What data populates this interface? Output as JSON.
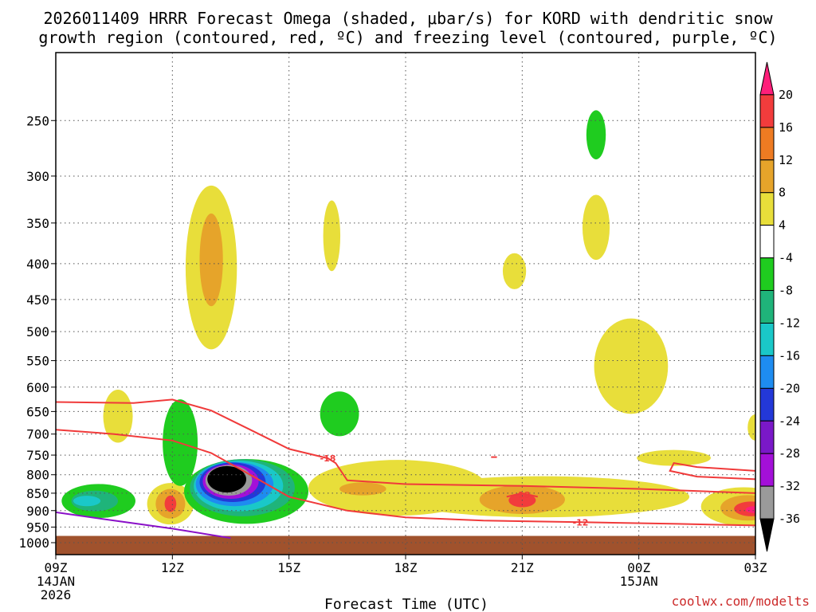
{
  "chart_data": {
    "type": "heatmap",
    "title_line1": "2026011409 HRRR Forecast Omega (shaded, μbar/s) for KORD with dendritic snow",
    "title_line2": "growth region (contoured, red, ºC) and freezing level (contoured, purple, ºC)",
    "xlabel": "Forecast Time (UTC)",
    "credit": "coolwx.com/modelts",
    "x_range_hours": [
      0,
      18
    ],
    "x_ticks": [
      {
        "hour": 0,
        "label": "09Z",
        "sub1": "14JAN",
        "sub2": "2026"
      },
      {
        "hour": 3,
        "label": "12Z",
        "sub1": "",
        "sub2": ""
      },
      {
        "hour": 6,
        "label": "15Z",
        "sub1": "",
        "sub2": ""
      },
      {
        "hour": 9,
        "label": "18Z",
        "sub1": "",
        "sub2": ""
      },
      {
        "hour": 12,
        "label": "21Z",
        "sub1": "",
        "sub2": ""
      },
      {
        "hour": 15,
        "label": "00Z",
        "sub1": "15JAN",
        "sub2": ""
      },
      {
        "hour": 18,
        "label": "03Z",
        "sub1": "",
        "sub2": ""
      }
    ],
    "y_range_hpa": [
      1040,
      200
    ],
    "y_ticks": [
      "250",
      "300",
      "350",
      "400",
      "450",
      "500",
      "550",
      "600",
      "650",
      "700",
      "750",
      "800",
      "850",
      "900",
      "950",
      "1000"
    ],
    "ground_level_hpa": 978,
    "colorbar": {
      "labels": [
        "20",
        "16",
        "12",
        "8",
        "4",
        "-4",
        "-8",
        "-12",
        "-16",
        "-20",
        "-24",
        "-28",
        "-32",
        "-36"
      ],
      "bins": [
        {
          "color": "#ff1f7a"
        },
        {
          "color": "#f23c3c"
        },
        {
          "color": "#ee7b22"
        },
        {
          "color": "#e6a42a"
        },
        {
          "color": "#e8de3a"
        },
        {
          "color": "#ffffff"
        },
        {
          "color": "#1fcc1f"
        },
        {
          "color": "#1fb47a"
        },
        {
          "color": "#1ac8c8"
        },
        {
          "color": "#1e8cf0"
        },
        {
          "color": "#2338d8"
        },
        {
          "color": "#7a18c8"
        },
        {
          "color": "#a310d8"
        },
        {
          "color": "#9a9a9a"
        },
        {
          "color": "#000000"
        }
      ]
    },
    "shaded_regions": [
      {
        "name": "yellow-12z-upper",
        "color": "#e8de3a",
        "h": 4.0,
        "p": 405,
        "dh": 0.66,
        "dp": 125
      },
      {
        "name": "orange-12z-upper",
        "color": "#e6a42a",
        "h": 4.0,
        "p": 395,
        "dp": 65,
        "dh": 0.3
      },
      {
        "name": "yellow-1030z",
        "color": "#e8de3a",
        "h": 1.6,
        "p": 660,
        "dh": 0.38,
        "dp": 60
      },
      {
        "name": "green-0930z",
        "color": "#1fcc1f",
        "h": 1.1,
        "p": 872,
        "dh": 0.95,
        "dp": 50
      },
      {
        "name": "teal-0930z",
        "color": "#1fb47a",
        "h": 1.0,
        "p": 872,
        "dh": 0.6,
        "dp": 30
      },
      {
        "name": "cyan-0930z",
        "color": "#1ac8c8",
        "h": 0.8,
        "p": 872,
        "dh": 0.35,
        "dp": 15
      },
      {
        "name": "yellow-12z-low",
        "color": "#e8de3a",
        "h": 2.95,
        "p": 880,
        "dh": 0.6,
        "dp": 62
      },
      {
        "name": "orange-12z-low",
        "color": "#e6a42a",
        "h": 2.95,
        "p": 880,
        "dh": 0.38,
        "dp": 44
      },
      {
        "name": "red-12z-low",
        "color": "#f23c3c",
        "h": 2.95,
        "p": 880,
        "dh": 0.15,
        "dp": 24
      },
      {
        "name": "green-13z",
        "color": "#1fcc1f",
        "h": 3.2,
        "p": 720,
        "dh": 0.45,
        "dp": 110
      },
      {
        "name": "green-14z",
        "color": "#1fcc1f",
        "h": 4.9,
        "p": 845,
        "dh": 1.6,
        "dp": 95
      },
      {
        "name": "teal-14z",
        "color": "#1fb47a",
        "h": 4.8,
        "p": 835,
        "dh": 1.35,
        "dp": 82
      },
      {
        "name": "cyan-14z",
        "color": "#1ac8c8",
        "h": 4.7,
        "p": 830,
        "dh": 1.15,
        "dp": 72
      },
      {
        "name": "blue-14z",
        "color": "#1e8cf0",
        "h": 4.6,
        "p": 825,
        "dh": 1.0,
        "dp": 62
      },
      {
        "name": "navy-14z",
        "color": "#2338d8",
        "h": 4.55,
        "p": 820,
        "dh": 0.85,
        "dp": 55
      },
      {
        "name": "purple-14z",
        "color": "#a310d8",
        "h": 4.5,
        "p": 818,
        "dh": 0.72,
        "dp": 48
      },
      {
        "name": "gray-14z",
        "color": "#9a9a9a",
        "h": 4.45,
        "p": 815,
        "dh": 0.6,
        "dp": 42
      },
      {
        "name": "black-14z",
        "color": "#000000",
        "h": 4.4,
        "p": 812,
        "dh": 0.5,
        "dp": 36
      },
      {
        "name": "green-16z-mid",
        "color": "#1fcc1f",
        "h": 7.3,
        "p": 655,
        "dh": 0.5,
        "dp": 50
      },
      {
        "name": "yellow-16z-upper",
        "color": "#e8de3a",
        "h": 7.1,
        "p": 365,
        "dh": 0.22,
        "dp": 45
      },
      {
        "name": "yellow-1730z-low",
        "color": "#e8de3a",
        "h": 8.8,
        "p": 835,
        "dh": 2.3,
        "dp": 80
      },
      {
        "name": "orange-16z-low",
        "color": "#e6a42a",
        "h": 7.9,
        "p": 838,
        "dh": 0.6,
        "dp": 18
      },
      {
        "name": "yellow-21z-low",
        "color": "#e8de3a",
        "h": 12.5,
        "p": 860,
        "dh": 3.8,
        "dp": 60
      },
      {
        "name": "orange-21z-low",
        "color": "#e6a42a",
        "h": 12.0,
        "p": 868,
        "dh": 1.1,
        "dp": 42
      },
      {
        "name": "red-21z-low",
        "color": "#f23c3c",
        "h": 12.0,
        "p": 870,
        "dh": 0.35,
        "dp": 20
      },
      {
        "name": "yellow-2030z-upper",
        "color": "#e8de3a",
        "h": 11.8,
        "p": 410,
        "dh": 0.3,
        "dp": 25
      },
      {
        "name": "yellow-2330z-upper",
        "color": "#e8de3a",
        "h": 13.9,
        "p": 355,
        "dh": 0.35,
        "dp": 40
      },
      {
        "name": "green-2330z-top",
        "color": "#1fcc1f",
        "h": 13.9,
        "p": 262,
        "dh": 0.25,
        "dp": 22
      },
      {
        "name": "yellow-00z-mid",
        "color": "#e8de3a",
        "h": 14.8,
        "p": 560,
        "dh": 0.95,
        "dp": 95
      },
      {
        "name": "yellow-0030z-low",
        "color": "#e8de3a",
        "h": 15.9,
        "p": 757,
        "dh": 0.95,
        "dp": 20
      },
      {
        "name": "yellow-02z-low",
        "color": "#e8de3a",
        "h": 17.7,
        "p": 888,
        "dh": 1.1,
        "dp": 58
      },
      {
        "name": "orange-02z-low",
        "color": "#e6a42a",
        "h": 17.8,
        "p": 892,
        "dh": 0.7,
        "dp": 38
      },
      {
        "name": "red-02z-low",
        "color": "#f23c3c",
        "h": 17.9,
        "p": 895,
        "dh": 0.45,
        "dp": 22
      },
      {
        "name": "pink-02z-low",
        "color": "#ff1f7a",
        "h": 17.95,
        "p": 897,
        "dh": 0.2,
        "dp": 10
      },
      {
        "name": "yellow-03z-edge",
        "color": "#e8de3a",
        "h": 18.0,
        "p": 685,
        "dh": 0.2,
        "dp": 30
      }
    ],
    "contours_red": [
      {
        "name": "dgz-minus12-line",
        "label": "-12",
        "label_at": [
          13.5,
          935
        ],
        "points": [
          [
            0,
            690
          ],
          [
            1.5,
            700
          ],
          [
            3,
            715
          ],
          [
            4,
            745
          ],
          [
            5,
            800
          ],
          [
            6,
            860
          ],
          [
            7.5,
            900
          ],
          [
            9,
            920
          ],
          [
            11,
            930
          ],
          [
            13.5,
            935
          ],
          [
            16,
            940
          ],
          [
            18,
            945
          ]
        ]
      },
      {
        "name": "dgz-minus18-line",
        "label": "-18",
        "label_at": [
          7.0,
          758
        ],
        "points": [
          [
            0,
            630
          ],
          [
            2,
            632
          ],
          [
            3,
            625
          ],
          [
            4,
            648
          ],
          [
            5,
            690
          ],
          [
            6,
            735
          ],
          [
            7,
            758
          ],
          [
            7.2,
            770
          ],
          [
            7.5,
            815
          ],
          [
            9,
            825
          ],
          [
            12,
            830
          ],
          [
            15,
            838
          ],
          [
            18,
            850
          ]
        ]
      },
      {
        "name": "dgz-minus18-lobe-21z",
        "label": "-18",
        "label_at": [
          12.0,
          855
        ],
        "points": [
          [
            11.6,
            860
          ],
          [
            12.0,
            850
          ],
          [
            12.4,
            860
          ]
        ]
      },
      {
        "name": "dgz-loop-00z",
        "label": "",
        "label_at": null,
        "points": [
          [
            18,
            790
          ],
          [
            16.5,
            780
          ],
          [
            15.9,
            770
          ],
          [
            15.8,
            790
          ],
          [
            16.5,
            805
          ],
          [
            18,
            812
          ]
        ]
      },
      {
        "name": "dgz-tiny-2030z",
        "label": "",
        "label_at": null,
        "points": [
          [
            11.2,
            755
          ],
          [
            11.35,
            755
          ]
        ]
      }
    ],
    "contours_purple": [
      {
        "name": "freezing-level-line",
        "label": "",
        "points": [
          [
            0,
            905
          ],
          [
            1.5,
            930
          ],
          [
            3,
            955
          ],
          [
            4.5,
            985
          ]
        ]
      }
    ]
  }
}
